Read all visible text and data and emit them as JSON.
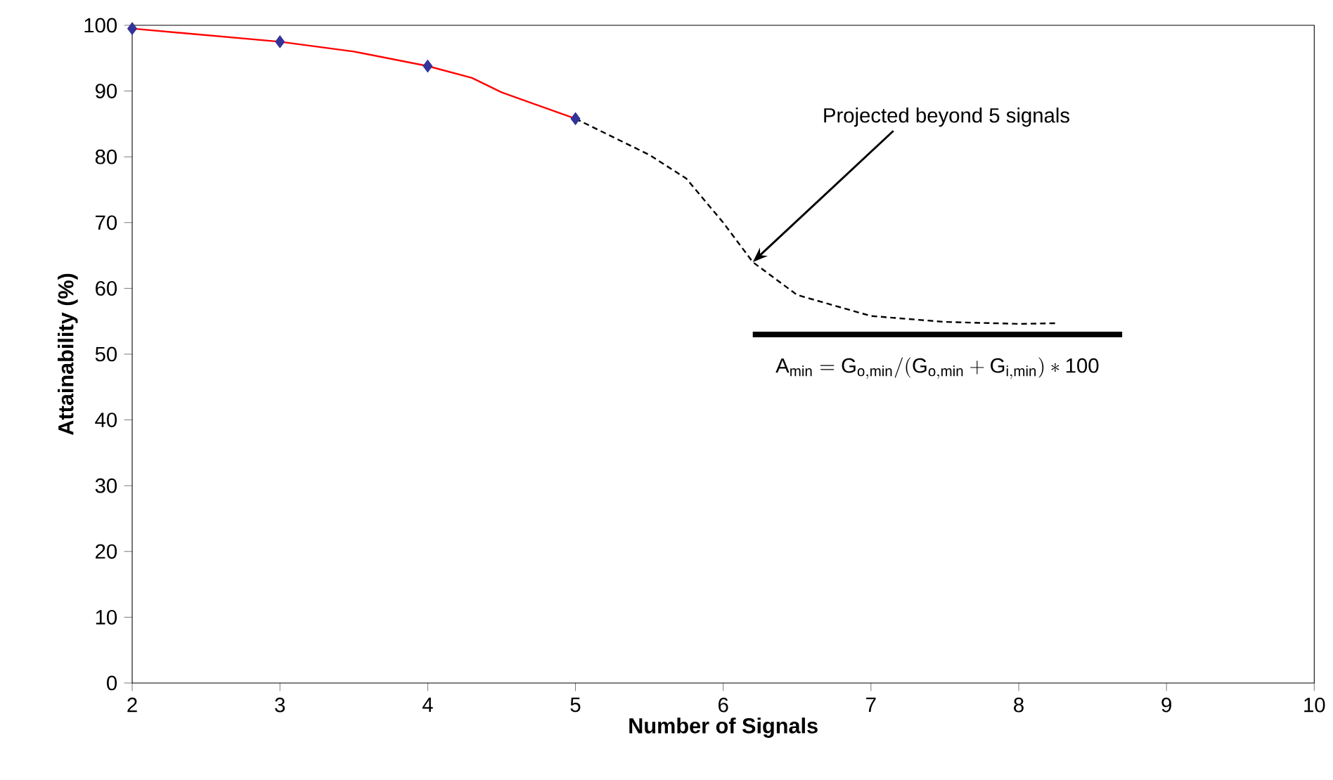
{
  "chart_data": {
    "type": "line",
    "xlabel": "Number of Signals",
    "ylabel": "Attainability (%)",
    "xlim": [
      2,
      10
    ],
    "ylim": [
      0,
      100
    ],
    "xticks": [
      2,
      3,
      4,
      5,
      6,
      7,
      8,
      9,
      10
    ],
    "yticks": [
      0,
      10,
      20,
      30,
      40,
      50,
      60,
      70,
      80,
      90,
      100
    ],
    "grid": false,
    "series": [
      {
        "color": "#ff0000",
        "marker": "none",
        "line_style": "solid",
        "x": [
          2,
          3,
          3.5,
          4,
          4.3,
          4.5,
          5
        ],
        "values": [
          99.5,
          97.5,
          96,
          93.8,
          92,
          89.8,
          85.8
        ]
      },
      {
        "type": "scatter",
        "color": "#333399",
        "marker": "diamond",
        "x": [
          2,
          3,
          4,
          5
        ],
        "values": [
          99.5,
          97.5,
          93.8,
          85.8
        ]
      },
      {
        "color": "#000000",
        "marker": "none",
        "line_style": "dashed",
        "x": [
          5,
          5.5,
          5.75,
          6,
          6.2,
          6.5,
          7,
          7.5,
          8,
          8.25
        ],
        "values": [
          85.8,
          80.3,
          76.7,
          70,
          64,
          59,
          55.8,
          54.9,
          54.6,
          54.7
        ]
      },
      {
        "color": "#000000",
        "marker": "none",
        "line_style": "solid",
        "x": [
          6.2,
          8.7
        ],
        "values": [
          53,
          53
        ]
      }
    ],
    "annotations": [
      {
        "text": "Projected beyond 5 signals",
        "x": 6.2,
        "y": 64
      },
      {
        "text": "\\mathrm{A_{min} = G_{o,min}/(G_{o,min}+G_{i,min})*100}",
        "x": 7.45,
        "y": 53
      }
    ]
  }
}
